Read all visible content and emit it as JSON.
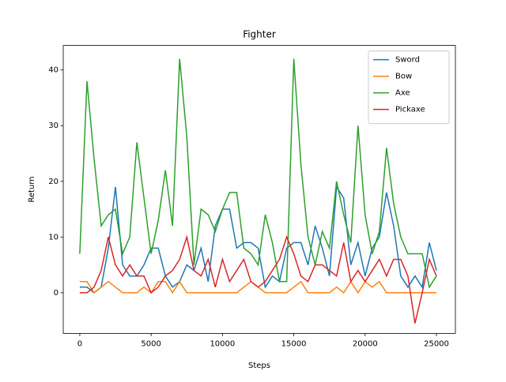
{
  "chart_data": {
    "type": "line",
    "title": "Fighter",
    "xlabel": "Steps",
    "ylabel": "Return",
    "x": [
      0,
      500,
      1000,
      1500,
      2000,
      2500,
      3000,
      3500,
      4000,
      4500,
      5000,
      5500,
      6000,
      6500,
      7000,
      7500,
      8000,
      8500,
      9000,
      9500,
      10000,
      10500,
      11000,
      11500,
      12000,
      12500,
      13000,
      13500,
      14000,
      14500,
      15000,
      15500,
      16000,
      16500,
      17000,
      17500,
      18000,
      18500,
      19000,
      19500,
      20000,
      20500,
      21000,
      21500,
      22000,
      22500,
      23000,
      23500,
      24000,
      24500,
      25000
    ],
    "series": [
      {
        "name": "Sword",
        "color": "#1f77b4",
        "values": [
          1,
          1,
          0,
          1,
          8,
          19,
          5,
          3,
          3,
          5,
          8,
          8,
          3,
          1,
          2,
          5,
          4,
          8,
          2,
          12,
          15,
          15,
          8,
          9,
          9,
          8,
          1,
          3,
          2,
          8,
          9,
          9,
          5,
          12,
          8,
          3,
          19,
          17,
          5,
          9,
          3,
          8,
          10,
          18,
          12,
          3,
          1,
          3,
          1,
          9,
          4
        ]
      },
      {
        "name": "Bow",
        "color": "#ff7f0e",
        "values": [
          2,
          2,
          0,
          1,
          2,
          1,
          0,
          0,
          0,
          1,
          0,
          2,
          2,
          0,
          2,
          0,
          0,
          0,
          0,
          0,
          0,
          0,
          0,
          1,
          2,
          1,
          0,
          0,
          0,
          0,
          1,
          2,
          0,
          0,
          0,
          0,
          1,
          0,
          2,
          0,
          2,
          1,
          2,
          0,
          0,
          0,
          0,
          0,
          0,
          0,
          0
        ]
      },
      {
        "name": "Axe",
        "color": "#2ca02c",
        "values": [
          7,
          38,
          24,
          12,
          14,
          15,
          7,
          10,
          27,
          17,
          7,
          13,
          22,
          12,
          42,
          28,
          5,
          15,
          14,
          11,
          15,
          18,
          18,
          8,
          7,
          5,
          14,
          9,
          2,
          2,
          42,
          23,
          10,
          5,
          11,
          8,
          20,
          14,
          9,
          30,
          14,
          7,
          11,
          26,
          16,
          10,
          7,
          7,
          7,
          1,
          3
        ]
      },
      {
        "name": "Pickaxe",
        "color": "#d62728",
        "values": [
          0,
          0,
          1,
          4,
          10,
          5,
          3,
          5,
          3,
          3,
          0,
          1,
          3,
          4,
          6,
          10,
          4,
          3,
          6,
          1,
          6,
          2,
          4,
          6,
          2,
          1,
          2,
          4,
          6,
          10,
          7,
          3,
          2,
          5,
          5,
          4,
          3,
          9,
          2,
          4,
          2,
          4,
          6,
          3,
          6,
          6,
          3,
          -5.5,
          0,
          6,
          3
        ]
      }
    ],
    "xlim": [
      -1160,
      26330
    ],
    "ylim": [
      -7.3,
      44.4
    ],
    "xticks": [
      0,
      5000,
      10000,
      15000,
      20000,
      25000
    ],
    "yticks": [
      0,
      10,
      20,
      30,
      40
    ],
    "legend": "upper right"
  }
}
